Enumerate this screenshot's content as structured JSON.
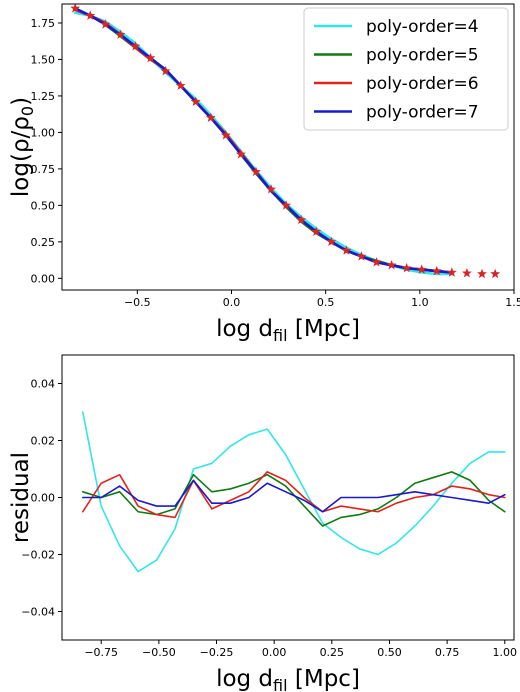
{
  "chart_data": [
    {
      "type": "line",
      "xlabel": {
        "main": "log d",
        "sub": "fil",
        "rest": " [Mpc]"
      },
      "ylabel": {
        "pre": "log(ρ/ρ",
        "sub": "0",
        "post": ")"
      },
      "xlim": [
        -0.9,
        1.5
      ],
      "ylim": [
        -0.08,
        1.88
      ],
      "xticks": [
        -0.5,
        0.0,
        0.5,
        1.0,
        1.5
      ],
      "xtick_labels": [
        "−0.5",
        "0.0",
        "0.5",
        "1.0",
        "1.5"
      ],
      "yticks": [
        0.0,
        0.25,
        0.5,
        0.75,
        1.0,
        1.25,
        1.5,
        1.75
      ],
      "ytick_labels": [
        "0.00",
        "0.25",
        "0.50",
        "0.75",
        "1.00",
        "1.25",
        "1.50",
        "1.75"
      ],
      "legend_position": "top-right",
      "data_points": {
        "name": "data",
        "color": "#d62728",
        "x": [
          -0.83,
          -0.75,
          -0.67,
          -0.59,
          -0.51,
          -0.43,
          -0.35,
          -0.27,
          -0.19,
          -0.11,
          -0.03,
          0.05,
          0.13,
          0.21,
          0.29,
          0.37,
          0.45,
          0.53,
          0.61,
          0.69,
          0.77,
          0.85,
          0.93,
          1.01,
          1.09,
          1.17,
          1.25,
          1.33,
          1.4
        ],
        "y": [
          1.85,
          1.8,
          1.74,
          1.67,
          1.59,
          1.51,
          1.42,
          1.32,
          1.21,
          1.1,
          0.98,
          0.85,
          0.73,
          0.61,
          0.5,
          0.4,
          0.32,
          0.25,
          0.19,
          0.15,
          0.11,
          0.09,
          0.07,
          0.06,
          0.05,
          0.04,
          0.035,
          0.03,
          0.03
        ]
      },
      "series": [
        {
          "name": "poly-order=4",
          "color": "#33e6e6",
          "x": [
            -0.83,
            -0.75,
            -0.67,
            -0.59,
            -0.51,
            -0.43,
            -0.35,
            -0.27,
            -0.19,
            -0.11,
            -0.03,
            0.05,
            0.13,
            0.21,
            0.29,
            0.37,
            0.45,
            0.53,
            0.61,
            0.69,
            0.77,
            0.85,
            0.93,
            1.01,
            1.09,
            1.17
          ],
          "y": [
            1.82,
            1.8,
            1.76,
            1.69,
            1.61,
            1.51,
            1.41,
            1.32,
            1.23,
            1.12,
            1.0,
            0.87,
            0.74,
            0.62,
            0.51,
            0.42,
            0.34,
            0.27,
            0.21,
            0.16,
            0.12,
            0.09,
            0.06,
            0.04,
            0.03,
            0.03
          ]
        },
        {
          "name": "poly-order=5",
          "color": "#117a11",
          "x": [
            -0.83,
            -0.75,
            -0.67,
            -0.59,
            -0.51,
            -0.43,
            -0.35,
            -0.27,
            -0.19,
            -0.11,
            -0.03,
            0.05,
            0.13,
            0.21,
            0.29,
            0.37,
            0.45,
            0.53,
            0.61,
            0.69,
            0.77,
            0.85,
            0.93,
            1.01,
            1.09,
            1.17
          ],
          "y": [
            1.85,
            1.8,
            1.74,
            1.66,
            1.58,
            1.5,
            1.43,
            1.32,
            1.21,
            1.1,
            0.99,
            0.85,
            0.72,
            0.6,
            0.49,
            0.39,
            0.31,
            0.25,
            0.19,
            0.15,
            0.12,
            0.09,
            0.07,
            0.06,
            0.05,
            0.04
          ]
        },
        {
          "name": "poly-order=6",
          "color": "#e0241b",
          "x": [
            -0.83,
            -0.75,
            -0.67,
            -0.59,
            -0.51,
            -0.43,
            -0.35,
            -0.27,
            -0.19,
            -0.11,
            -0.03,
            0.05,
            0.13,
            0.21,
            0.29,
            0.37,
            0.45,
            0.53,
            0.61,
            0.69,
            0.77,
            0.85,
            0.93,
            1.01,
            1.09,
            1.17
          ],
          "y": [
            1.84,
            1.8,
            1.75,
            1.67,
            1.58,
            1.5,
            1.43,
            1.32,
            1.21,
            1.1,
            0.99,
            0.86,
            0.73,
            0.6,
            0.5,
            0.4,
            0.32,
            0.25,
            0.19,
            0.15,
            0.11,
            0.09,
            0.07,
            0.06,
            0.05,
            0.04
          ]
        },
        {
          "name": "poly-order=7",
          "color": "#1a1acc",
          "x": [
            -0.83,
            -0.75,
            -0.67,
            -0.59,
            -0.51,
            -0.43,
            -0.35,
            -0.27,
            -0.19,
            -0.11,
            -0.03,
            0.05,
            0.13,
            0.21,
            0.29,
            0.37,
            0.45,
            0.53,
            0.61,
            0.69,
            0.77,
            0.85,
            0.93,
            1.01,
            1.09,
            1.17
          ],
          "y": [
            1.85,
            1.8,
            1.74,
            1.67,
            1.59,
            1.51,
            1.43,
            1.32,
            1.21,
            1.1,
            0.98,
            0.85,
            0.73,
            0.6,
            0.5,
            0.4,
            0.32,
            0.25,
            0.19,
            0.15,
            0.11,
            0.09,
            0.07,
            0.06,
            0.05,
            0.04
          ]
        }
      ]
    },
    {
      "type": "line",
      "xlabel": {
        "main": "log d",
        "sub": "fil",
        "rest": " [Mpc]"
      },
      "ylabel": {
        "pre": "residual",
        "sub": "",
        "post": ""
      },
      "xlim": [
        -0.92,
        1.04
      ],
      "ylim": [
        -0.05,
        0.05
      ],
      "xticks": [
        -0.75,
        -0.5,
        -0.25,
        0.0,
        0.25,
        0.5,
        0.75,
        1.0
      ],
      "xtick_labels": [
        "−0.75",
        "−0.50",
        "−0.25",
        "0.00",
        "0.25",
        "0.50",
        "0.75",
        "1.00"
      ],
      "yticks": [
        -0.04,
        -0.02,
        0.0,
        0.02,
        0.04
      ],
      "ytick_labels": [
        "−0.04",
        "−0.02",
        "0.00",
        "0.02",
        "0.04"
      ],
      "series": [
        {
          "name": "poly-order=4",
          "color": "#33e6e6",
          "x": [
            -0.83,
            -0.75,
            -0.67,
            -0.59,
            -0.51,
            -0.43,
            -0.35,
            -0.27,
            -0.19,
            -0.11,
            -0.03,
            0.05,
            0.13,
            0.21,
            0.29,
            0.37,
            0.45,
            0.53,
            0.61,
            0.69,
            0.77,
            0.85,
            0.93,
            1.0
          ],
          "y": [
            0.03,
            -0.003,
            -0.017,
            -0.026,
            -0.022,
            -0.011,
            0.01,
            0.012,
            0.018,
            0.022,
            0.024,
            0.015,
            0.003,
            -0.009,
            -0.014,
            -0.018,
            -0.02,
            -0.016,
            -0.01,
            -0.003,
            0.005,
            0.012,
            0.016,
            0.016
          ]
        },
        {
          "name": "poly-order=5",
          "color": "#117a11",
          "x": [
            -0.83,
            -0.75,
            -0.67,
            -0.59,
            -0.51,
            -0.43,
            -0.35,
            -0.27,
            -0.19,
            -0.11,
            -0.03,
            0.05,
            0.13,
            0.21,
            0.29,
            0.37,
            0.45,
            0.53,
            0.61,
            0.69,
            0.77,
            0.85,
            0.93,
            1.0
          ],
          "y": [
            0.002,
            0.0,
            0.002,
            -0.005,
            -0.006,
            -0.004,
            0.008,
            0.002,
            0.003,
            0.005,
            0.008,
            0.004,
            -0.003,
            -0.01,
            -0.007,
            -0.006,
            -0.004,
            0.0,
            0.005,
            0.007,
            0.009,
            0.006,
            -0.001,
            -0.005
          ]
        },
        {
          "name": "poly-order=6",
          "color": "#e0241b",
          "x": [
            -0.83,
            -0.75,
            -0.67,
            -0.59,
            -0.51,
            -0.43,
            -0.35,
            -0.27,
            -0.19,
            -0.11,
            -0.03,
            0.05,
            0.13,
            0.21,
            0.29,
            0.37,
            0.45,
            0.53,
            0.61,
            0.69,
            0.77,
            0.85,
            0.93,
            1.0
          ],
          "y": [
            -0.005,
            0.005,
            0.008,
            -0.003,
            -0.006,
            -0.007,
            0.006,
            -0.004,
            -0.001,
            0.002,
            0.009,
            0.006,
            0.0,
            -0.005,
            -0.003,
            -0.004,
            -0.005,
            -0.002,
            0.0,
            0.001,
            0.004,
            0.003,
            0.001,
            0.0
          ]
        },
        {
          "name": "poly-order=7",
          "color": "#1a1acc",
          "x": [
            -0.83,
            -0.75,
            -0.67,
            -0.59,
            -0.51,
            -0.43,
            -0.35,
            -0.27,
            -0.19,
            -0.11,
            -0.03,
            0.05,
            0.13,
            0.21,
            0.29,
            0.37,
            0.45,
            0.53,
            0.61,
            0.69,
            0.77,
            0.85,
            0.93,
            1.0
          ],
          "y": [
            -0.0,
            -0.0,
            0.004,
            -0.001,
            -0.003,
            -0.003,
            0.006,
            -0.002,
            -0.002,
            0.0,
            0.005,
            0.002,
            -0.001,
            -0.005,
            0.0,
            0.0,
            0.0,
            0.001,
            0.002,
            0.001,
            0.0,
            -0.001,
            -0.002,
            0.001
          ]
        }
      ]
    }
  ]
}
